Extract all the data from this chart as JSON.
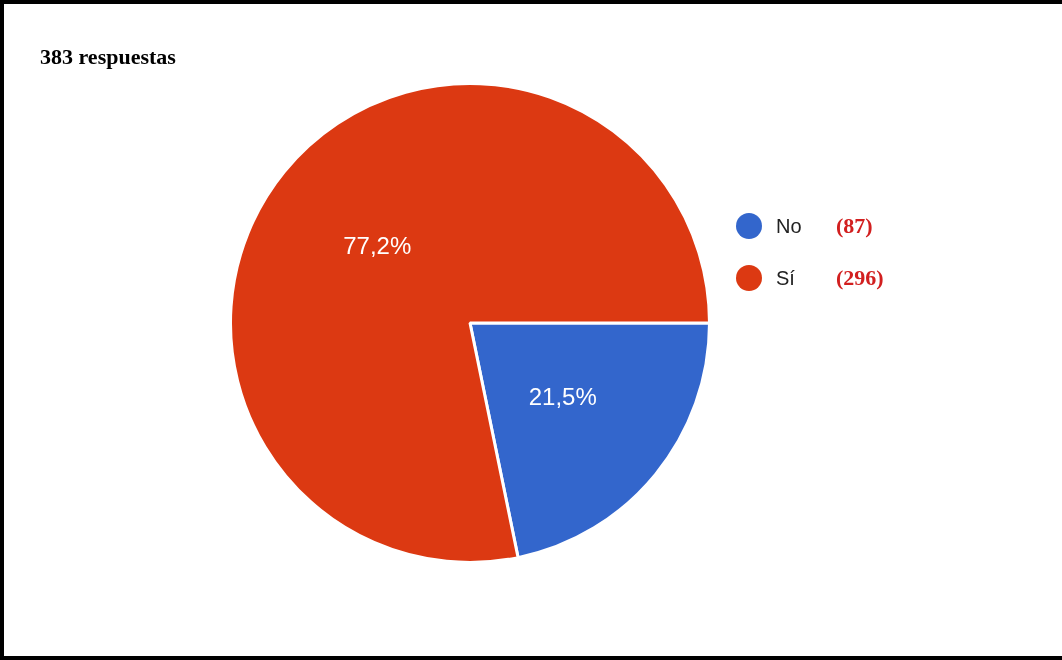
{
  "chart_data": {
    "type": "pie",
    "title": "383 respuestas",
    "categories": [
      "No",
      "Sí"
    ],
    "values": [
      21.5,
      77.2
    ],
    "colors": [
      "#3366cc",
      "#dc3912"
    ],
    "value_labels": [
      "21,5%",
      "77,2%"
    ],
    "legend": "right",
    "annotations": [
      "(87)",
      "(296)"
    ]
  }
}
